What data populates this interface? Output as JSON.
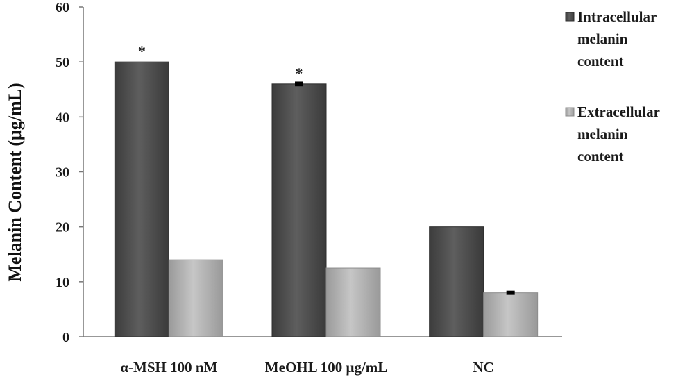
{
  "chart_data": {
    "type": "bar",
    "title": "",
    "xlabel": "",
    "ylabel": "Melanin Content  (μg/mL)",
    "ylim": [
      0,
      60
    ],
    "yticks": [
      0,
      10,
      20,
      30,
      40,
      50,
      60
    ],
    "grid": false,
    "legend_position": "right",
    "categories": [
      "α-MSH 100 nM",
      "MeOHL 100 μg/mL",
      "NC"
    ],
    "series": [
      {
        "name": "Intracellular melanin content",
        "legend_lines": [
          "Intracellular",
          "melanin",
          "content"
        ],
        "values": [
          50,
          46,
          20
        ],
        "errors": [
          0,
          0.3,
          0
        ],
        "annotations": [
          "*",
          "*",
          ""
        ],
        "color": "#5a5a5a"
      },
      {
        "name": "Extracellular melanin content",
        "legend_lines": [
          "Extracellular",
          "melanin",
          "content"
        ],
        "values": [
          14,
          12.5,
          8
        ],
        "errors": [
          0,
          0,
          0.25
        ],
        "annotations": [
          "",
          "",
          ""
        ],
        "color": "#b8b8b8"
      }
    ]
  }
}
